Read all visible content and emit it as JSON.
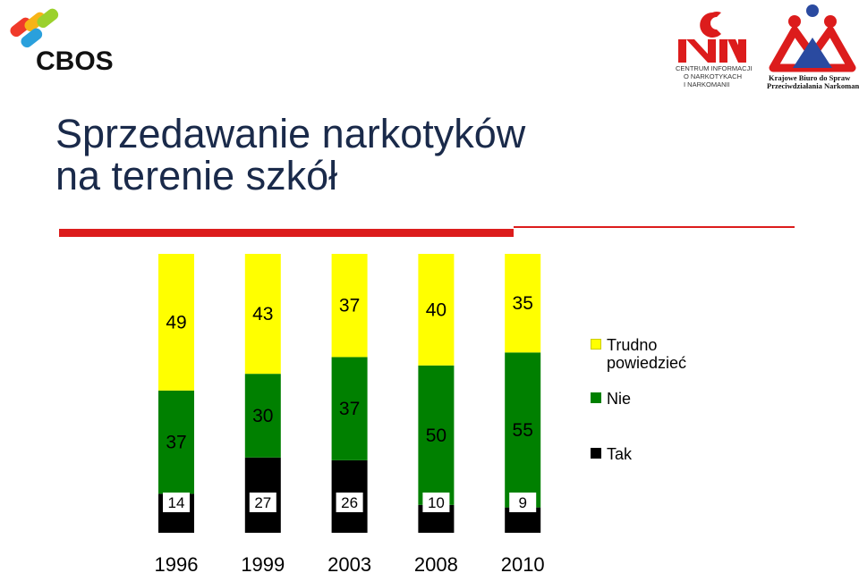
{
  "header": {
    "cbos_logo_text": "CBOS",
    "cinn_logo_text": "CINN",
    "cinn_caption": [
      "CENTRUM INFORMACJI",
      "O NARKOTYKACH",
      "I NARKOMANII"
    ],
    "kbpn_caption": [
      "Krajowe Biuro do Spraw",
      "Przeciwdziałania Narkomanii"
    ]
  },
  "title": {
    "line1": "Sprzedawanie narkotyków",
    "line2": "na terenie szkół"
  },
  "colors": {
    "tak": "#000000",
    "nie": "#008000",
    "trudno": "#ffff00",
    "accent_red": "#dc1c1c"
  },
  "chart_data": {
    "type": "bar",
    "stacked": true,
    "normalized": true,
    "categories": [
      "1996",
      "1999",
      "2003",
      "2008",
      "2010"
    ],
    "series": [
      {
        "name": "Tak",
        "values": [
          14,
          27,
          26,
          10,
          9
        ]
      },
      {
        "name": "Nie",
        "values": [
          37,
          30,
          37,
          50,
          55
        ]
      },
      {
        "name": "Trudno powiedzieć",
        "values": [
          49,
          43,
          37,
          40,
          35
        ]
      }
    ],
    "legend_order": [
      "Trudno powiedzieć",
      "Nie",
      "Tak"
    ],
    "legend_position": "right",
    "grid": false
  }
}
